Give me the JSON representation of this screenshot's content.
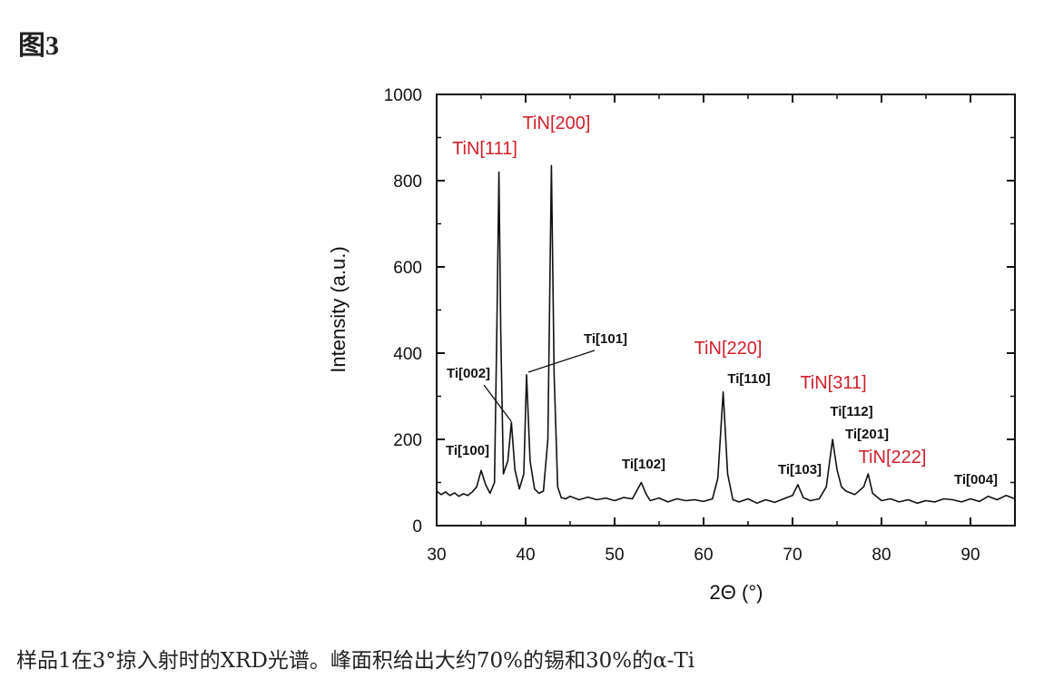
{
  "figure_label": "图3",
  "caption": "样品1在3°掠入射时的XRD光谱。峰面积给出大约70%的锡和30%的α-Ti",
  "chart_data": {
    "type": "line",
    "x_label": "2Θ (°)",
    "y_label": "Intensity (a.u.)",
    "xlim": [
      30,
      95
    ],
    "ylim": [
      0,
      1000
    ],
    "xticks": [
      30,
      40,
      50,
      60,
      70,
      80,
      90
    ],
    "yticks": [
      0,
      200,
      400,
      600,
      800,
      1000
    ],
    "series": [
      {
        "color": "#111111",
        "x": [
          30,
          30.5,
          31,
          31.5,
          32,
          32.5,
          33,
          33.5,
          34,
          34.5,
          35,
          35.5,
          36,
          36.5,
          36.8,
          37,
          37.2,
          37.5,
          38,
          38.4,
          38.8,
          39.3,
          39.8,
          40.1,
          40.5,
          41,
          41.5,
          42,
          42.5,
          42.9,
          43.2,
          43.6,
          44,
          44.5,
          45,
          46,
          47,
          48,
          49,
          50,
          51,
          52,
          53,
          53.5,
          54,
          55,
          56,
          57,
          58,
          59,
          60,
          61,
          61.6,
          62.2,
          62.7,
          63.3,
          64,
          65,
          66,
          67,
          68,
          69,
          70,
          70.6,
          71.2,
          72,
          73,
          73.8,
          74.5,
          75,
          75.5,
          76,
          77,
          78,
          78.5,
          79,
          80,
          81,
          82,
          83,
          84,
          85,
          86,
          87,
          88,
          89,
          90,
          91,
          92,
          93,
          94,
          95
        ],
        "values": [
          80,
          72,
          78,
          70,
          76,
          68,
          74,
          70,
          78,
          90,
          128,
          95,
          75,
          100,
          500,
          820,
          450,
          120,
          150,
          240,
          130,
          85,
          120,
          350,
          150,
          85,
          75,
          80,
          200,
          835,
          350,
          90,
          65,
          62,
          68,
          60,
          66,
          60,
          64,
          58,
          65,
          62,
          100,
          75,
          58,
          64,
          55,
          62,
          58,
          60,
          56,
          62,
          110,
          310,
          120,
          60,
          55,
          62,
          52,
          60,
          54,
          62,
          70,
          95,
          65,
          58,
          62,
          90,
          200,
          130,
          90,
          80,
          72,
          90,
          120,
          75,
          58,
          62,
          55,
          60,
          52,
          58,
          55,
          62,
          60,
          55,
          62,
          56,
          68,
          60,
          70,
          62
        ]
      }
    ],
    "annotations": [
      {
        "text": "TiN[111]",
        "color": "#d0202a"
      },
      {
        "text": "TiN[200]",
        "color": "#d0202a"
      },
      {
        "text": "Ti[002]",
        "color": "#111111"
      },
      {
        "text": "Ti[101]",
        "color": "#111111"
      },
      {
        "text": "Ti[100]",
        "color": "#111111"
      },
      {
        "text": "Ti[102]",
        "color": "#111111"
      },
      {
        "text": "TiN[220]",
        "color": "#d0202a"
      },
      {
        "text": "Ti[110]",
        "color": "#111111"
      },
      {
        "text": "TiN[311]",
        "color": "#d0202a"
      },
      {
        "text": "Ti[112]",
        "color": "#111111"
      },
      {
        "text": "Ti[201]",
        "color": "#111111"
      },
      {
        "text": "TiN[222]",
        "color": "#d0202a"
      },
      {
        "text": "Ti[103]",
        "color": "#111111"
      },
      {
        "text": "Ti[004]",
        "color": "#111111"
      }
    ]
  }
}
